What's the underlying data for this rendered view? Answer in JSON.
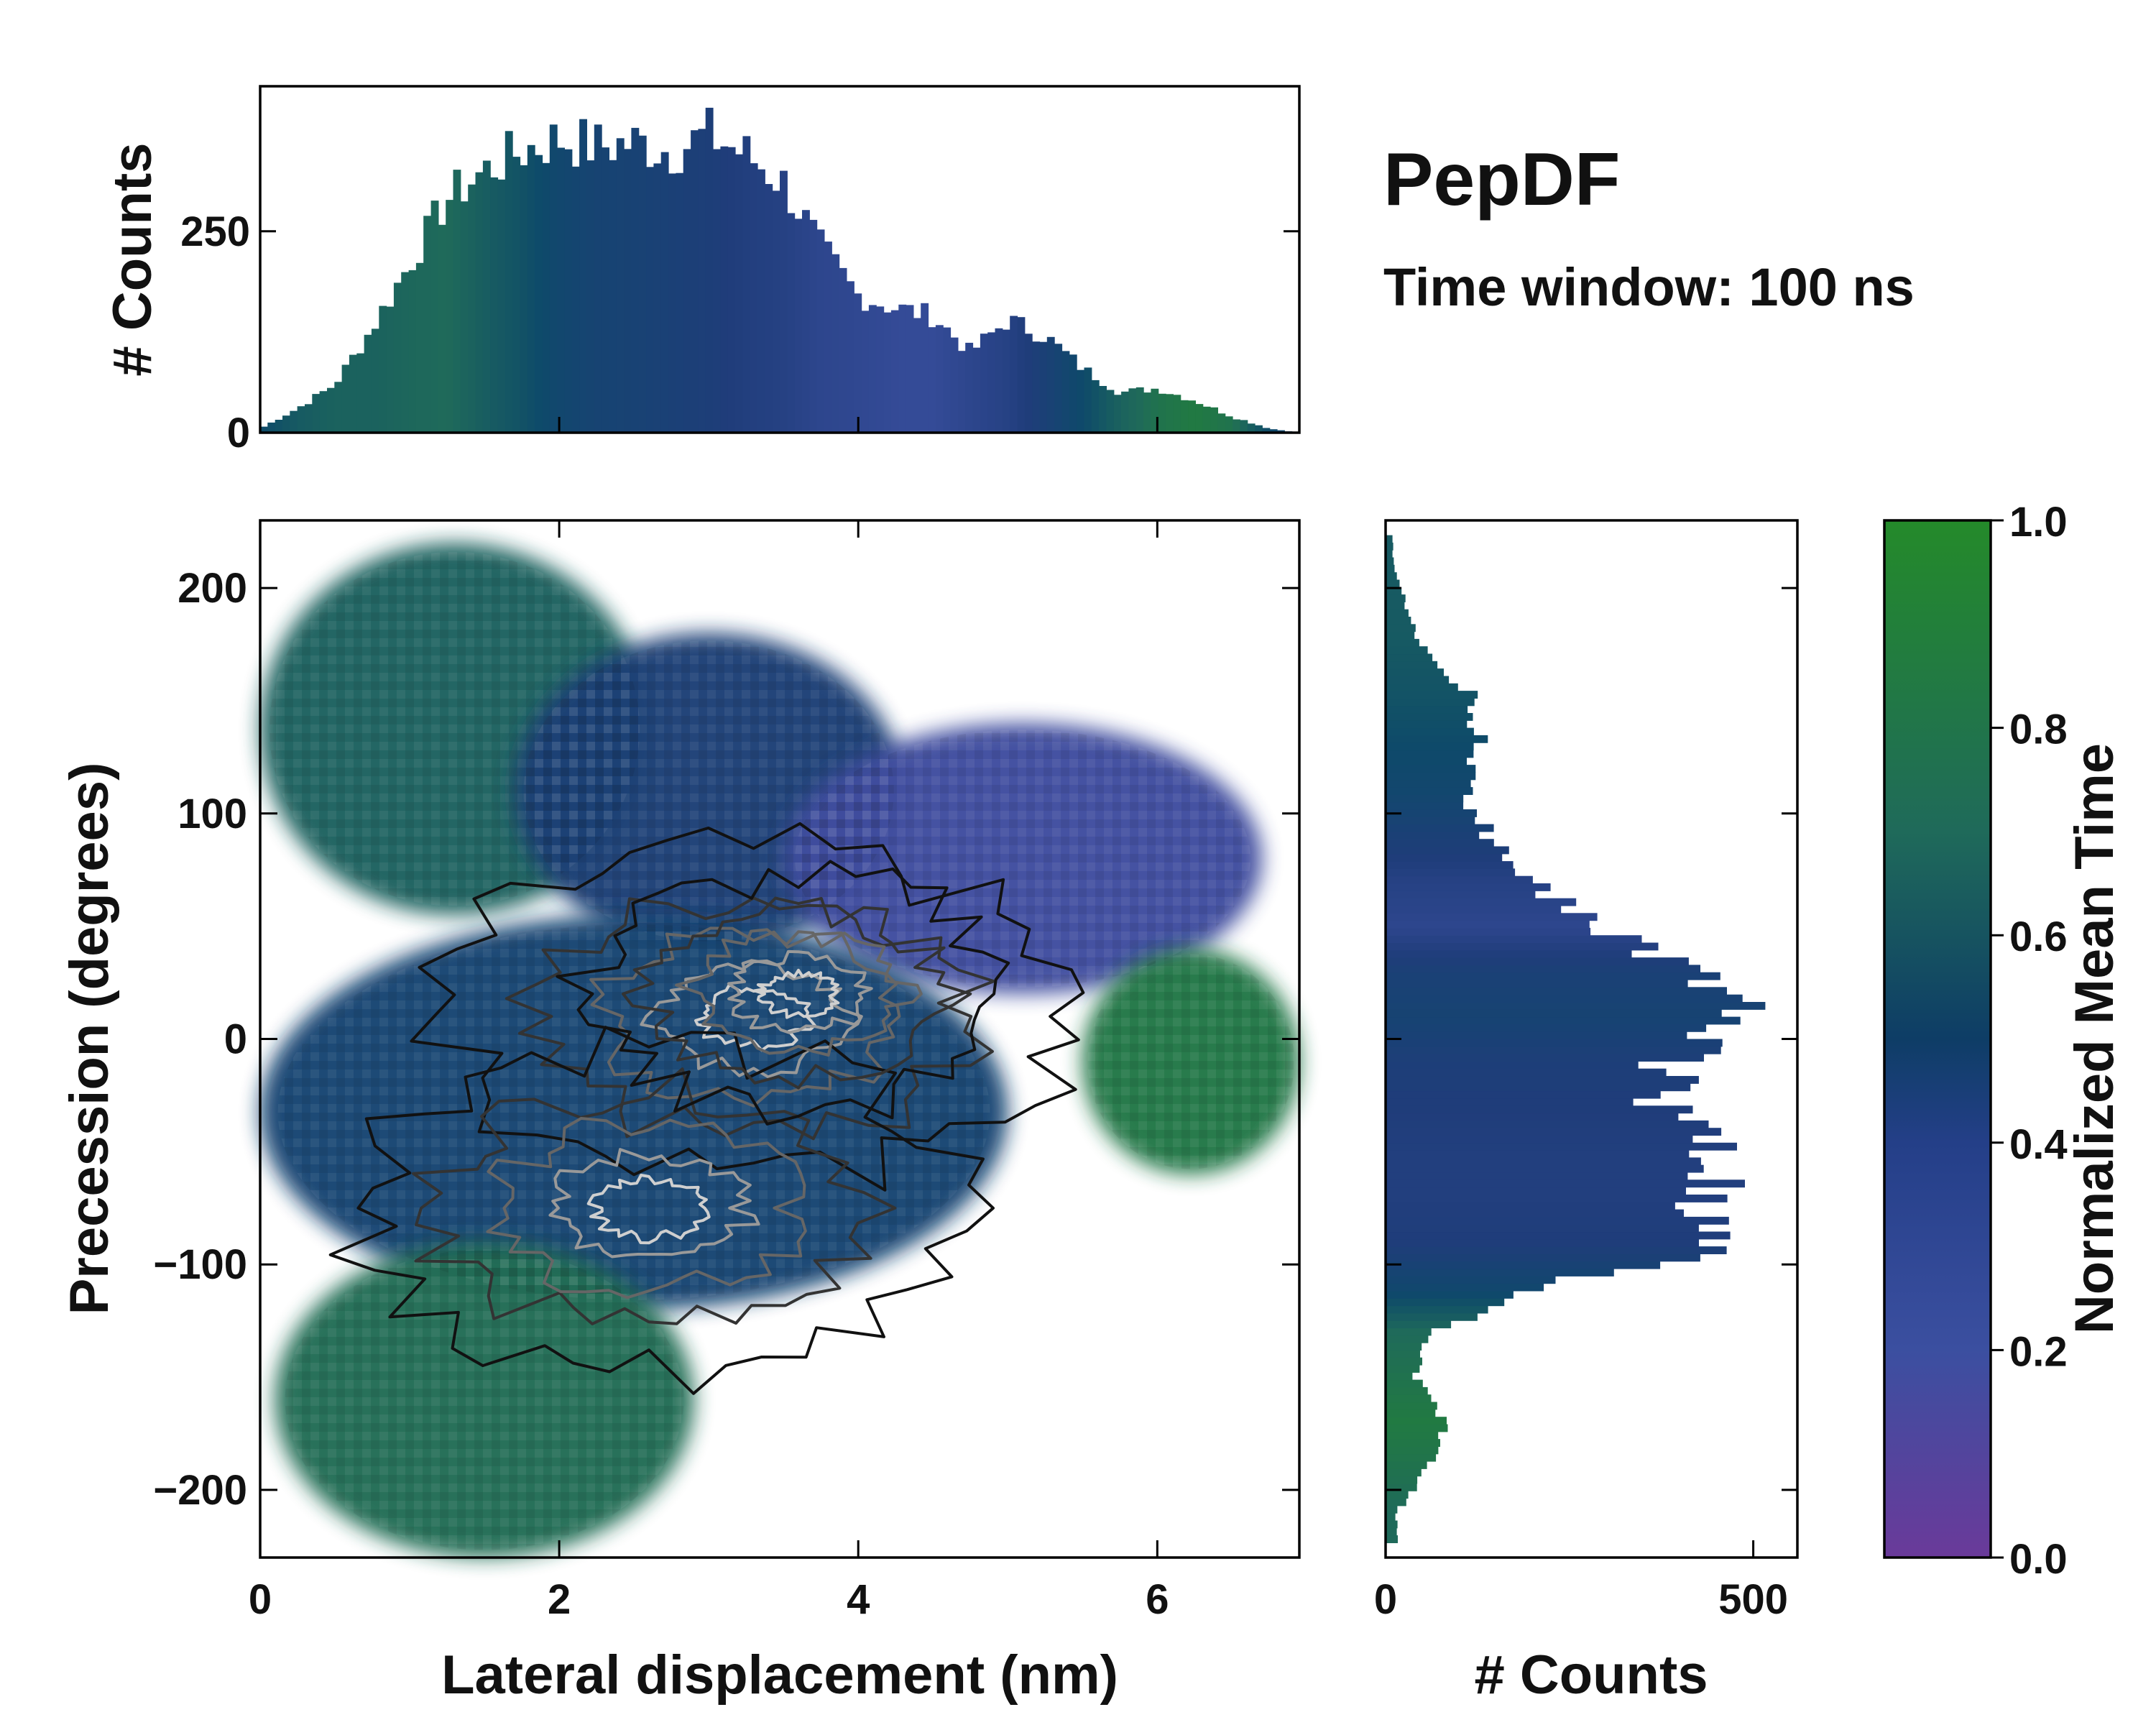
{
  "chart_data": [
    {
      "id": "top_histogram",
      "type": "bar",
      "title": "",
      "xlabel": "",
      "ylabel": "# Counts",
      "xlim": [
        0,
        6.95
      ],
      "ylim": [
        0,
        430
      ],
      "yticks": [
        0,
        250
      ],
      "ytick_labels": [
        "0",
        "250"
      ],
      "x": [
        0.0,
        0.25,
        0.5,
        0.75,
        1.0,
        1.25,
        1.5,
        1.75,
        2.0,
        2.25,
        2.5,
        2.75,
        3.0,
        3.25,
        3.5,
        3.75,
        4.0,
        4.25,
        4.5,
        4.75,
        5.0,
        5.25,
        5.5,
        5.75,
        6.0,
        6.25,
        6.5,
        6.75,
        6.95
      ],
      "values": [
        5,
        30,
        60,
        130,
        210,
        290,
        325,
        350,
        365,
        355,
        360,
        350,
        370,
        345,
        310,
        230,
        170,
        155,
        145,
        100,
        140,
        120,
        80,
        50,
        55,
        40,
        20,
        5,
        0
      ],
      "color_values": [
        0.6,
        0.7,
        0.75,
        0.75,
        0.78,
        0.8,
        0.72,
        0.65,
        0.55,
        0.5,
        0.48,
        0.45,
        0.42,
        0.38,
        0.35,
        0.3,
        0.28,
        0.25,
        0.25,
        0.3,
        0.35,
        0.45,
        0.6,
        0.75,
        0.85,
        0.9,
        0.85,
        0.6,
        0.5
      ]
    },
    {
      "id": "main_2d_histogram",
      "type": "heatmap",
      "title": "",
      "xlabel": "Lateral displacement (nm)",
      "ylabel": "Precession (degrees)",
      "xlim": [
        0,
        6.95
      ],
      "ylim": [
        -230,
        230
      ],
      "xticks": [
        0,
        2,
        4,
        6
      ],
      "xtick_labels": [
        "0",
        "2",
        "4",
        "6"
      ],
      "yticks": [
        200,
        100,
        0,
        -100,
        -200
      ],
      "ytick_labels": [
        "200",
        "100",
        "0",
        "−100",
        "−200"
      ],
      "regions": [
        {
          "name": "upper-left lobe",
          "x_range": [
            0.0,
            2.6
          ],
          "y_range": [
            55,
            220
          ],
          "mean_time": 0.75
        },
        {
          "name": "upper central band",
          "x_range": [
            1.7,
            4.3
          ],
          "y_range": [
            40,
            180
          ],
          "mean_time": 0.45
        },
        {
          "name": "upper-right purple lobe",
          "x_range": [
            3.5,
            6.7
          ],
          "y_range": [
            20,
            140
          ],
          "mean_time": 0.18
        },
        {
          "name": "central core",
          "x_range": [
            0.0,
            5.0
          ],
          "y_range": [
            -120,
            55
          ],
          "mean_time": 0.5
        },
        {
          "name": "right green lobe",
          "x_range": [
            5.5,
            6.95
          ],
          "y_range": [
            -60,
            40
          ],
          "mean_time": 0.88
        },
        {
          "name": "lower-left green lobe",
          "x_range": [
            0.1,
            2.9
          ],
          "y_range": [
            -230,
            -90
          ],
          "mean_time": 0.82
        }
      ],
      "density_peaks": [
        {
          "x": 3.3,
          "y": 10,
          "level": "high"
        },
        {
          "x": 2.6,
          "y": -75,
          "level": "high"
        },
        {
          "x": 3.6,
          "y": 20,
          "level": "medium"
        }
      ]
    },
    {
      "id": "right_histogram",
      "type": "bar",
      "orientation": "horizontal",
      "title": "",
      "xlabel": "# Counts",
      "ylabel": "",
      "xlim": [
        0,
        560
      ],
      "ylim": [
        -230,
        230
      ],
      "xticks": [
        0,
        500
      ],
      "xtick_labels": [
        "0",
        "500"
      ],
      "y": [
        210,
        180,
        150,
        130,
        110,
        90,
        70,
        50,
        30,
        10,
        -10,
        -30,
        -50,
        -70,
        -90,
        -110,
        -130,
        -150,
        -170,
        -190,
        -210
      ],
      "values": [
        10,
        40,
        120,
        130,
        110,
        140,
        190,
        290,
        420,
        490,
        390,
        370,
        470,
        430,
        480,
        220,
        60,
        40,
        80,
        60,
        15
      ],
      "color_values": [
        0.7,
        0.7,
        0.65,
        0.6,
        0.55,
        0.45,
        0.35,
        0.3,
        0.45,
        0.5,
        0.42,
        0.4,
        0.38,
        0.38,
        0.4,
        0.55,
        0.8,
        0.85,
        0.9,
        0.85,
        0.8
      ]
    },
    {
      "id": "colorbar",
      "type": "colorbar",
      "label": "Normalized Mean Time",
      "range": [
        0.0,
        1.0
      ],
      "ticks": [
        "1.0",
        "0.8",
        "0.6",
        "0.4",
        "0.2",
        "0.0"
      ],
      "colormap": [
        "#6a3a9a",
        "#3b4fa0",
        "#1f3d7a",
        "#0e4a6a",
        "#1f6a5a",
        "#248a2a"
      ]
    }
  ],
  "annotations": {
    "title": "PepDF",
    "subtitle": "Time window: 100 ns"
  }
}
